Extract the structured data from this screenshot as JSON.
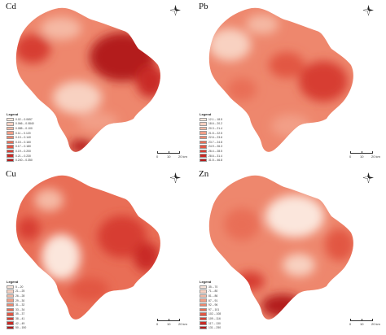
{
  "panels": [
    {
      "metal": "Cd",
      "legend_title": "Legend",
      "legend": [
        {
          "label": "0.02 – 0.0657",
          "color": "#fbe6dc"
        },
        {
          "label": "0.066 – 0.0840",
          "color": "#f8d1c1"
        },
        {
          "label": "0.085 – 0.100",
          "color": "#f5b9a4"
        },
        {
          "label": "0.11 – 0.120",
          "color": "#f29f87"
        },
        {
          "label": "0.13 – 0.140",
          "color": "#ee876d"
        },
        {
          "label": "0.15 – 0.160",
          "color": "#e96e56"
        },
        {
          "label": "0.17 – 0.180",
          "color": "#e25643"
        },
        {
          "label": "0.19 – 0.200",
          "color": "#d73d31"
        },
        {
          "label": "0.21 – 0.230",
          "color": "#c92a25"
        },
        {
          "label": "0.240 – 0.350",
          "color": "#b31b1b"
        }
      ]
    },
    {
      "metal": "Pb",
      "legend_title": "Legend",
      "legend": [
        {
          "label": "12.1 – 18.5",
          "color": "#fbe6dc"
        },
        {
          "label": "18.6 – 20.2",
          "color": "#f8d1c1"
        },
        {
          "label": "20.3 – 21.4",
          "color": "#f5b9a4"
        },
        {
          "label": "21.5 – 22.5",
          "color": "#f29f87"
        },
        {
          "label": "22.6 – 23.6",
          "color": "#ee876d"
        },
        {
          "label": "23.7 – 24.8",
          "color": "#e96e56"
        },
        {
          "label": "24.9 – 26.3",
          "color": "#e25643"
        },
        {
          "label": "26.4 – 28.5",
          "color": "#d73d31"
        },
        {
          "label": "28.6 – 31.4",
          "color": "#c92a25"
        },
        {
          "label": "31.5 – 46.8",
          "color": "#b31b1b"
        }
      ]
    },
    {
      "metal": "Cu",
      "legend_title": "Legend",
      "legend": [
        {
          "label": "5 – 20",
          "color": "#fbe6dc"
        },
        {
          "label": "21 – 25",
          "color": "#f8d1c1"
        },
        {
          "label": "26 – 28",
          "color": "#f5b9a4"
        },
        {
          "label": "29 – 30",
          "color": "#f29f87"
        },
        {
          "label": "31 – 32",
          "color": "#ee876d"
        },
        {
          "label": "33 – 34",
          "color": "#e96e56"
        },
        {
          "label": "35 – 37",
          "color": "#e25643"
        },
        {
          "label": "38 – 41",
          "color": "#d73d31"
        },
        {
          "label": "42 – 49",
          "color": "#c92a25"
        },
        {
          "label": "50 – 150",
          "color": "#b31b1b"
        }
      ]
    },
    {
      "metal": "Zn",
      "legend_title": "Legend",
      "legend": [
        {
          "label": "35 – 70",
          "color": "#fbe6dc"
        },
        {
          "label": "71 – 80",
          "color": "#f8d1c1"
        },
        {
          "label": "81 – 86",
          "color": "#f5b9a4"
        },
        {
          "label": "87 – 91",
          "color": "#f29f87"
        },
        {
          "label": "92 – 96",
          "color": "#ee876d"
        },
        {
          "label": "97 – 101",
          "color": "#e96e56"
        },
        {
          "label": "102 – 108",
          "color": "#e25643"
        },
        {
          "label": "109 – 116",
          "color": "#d73d31"
        },
        {
          "label": "117 – 130",
          "color": "#c92a25"
        },
        {
          "label": "131 – 250",
          "color": "#b31b1b"
        }
      ]
    }
  ],
  "scale": {
    "ticks": [
      "0",
      "10",
      "20 km"
    ]
  },
  "compass": {
    "north": "N",
    "icon": "north-arrow-icon"
  }
}
